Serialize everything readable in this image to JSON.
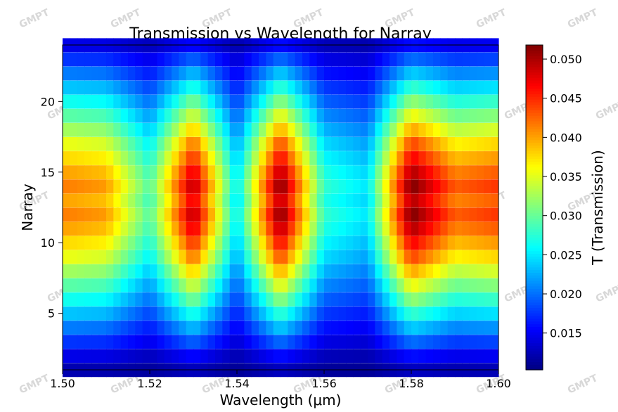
{
  "chart_data": {
    "type": "heatmap",
    "title": "Transmission vs Wavelength for Narray",
    "xlabel": "Wavelength (μm)",
    "ylabel": "Narray",
    "colorbar_label": "T (Transmission)",
    "colormap": "jet",
    "xlim": [
      1.5,
      1.6
    ],
    "ylim": [
      1,
      24
    ],
    "vlim": [
      0.0103,
      0.0518
    ],
    "x_ticks": [
      "1.50",
      "1.52",
      "1.54",
      "1.56",
      "1.58",
      "1.60"
    ],
    "y_ticks": [
      "5",
      "10",
      "15",
      "20"
    ],
    "colorbar_ticks": [
      "0.015",
      "0.020",
      "0.025",
      "0.030",
      "0.035",
      "0.040",
      "0.045",
      "0.050"
    ],
    "y_rows": [
      1,
      2,
      3,
      4,
      5,
      6,
      7,
      8,
      9,
      10,
      11,
      12,
      13,
      14,
      15,
      16,
      17,
      18,
      19,
      20,
      21,
      22,
      23,
      24
    ],
    "row_peak_values": [
      0.013,
      0.016,
      0.02,
      0.024,
      0.028,
      0.032,
      0.036,
      0.04,
      0.044,
      0.047,
      0.05,
      0.052,
      0.05,
      0.052,
      0.05,
      0.047,
      0.044,
      0.04,
      0.036,
      0.032,
      0.028,
      0.024,
      0.02,
      0.016
    ],
    "column_profile_wavelengths": [
      1.5,
      1.51,
      1.52,
      1.53,
      1.54,
      1.55,
      1.56,
      1.57,
      1.58,
      1.59,
      1.6
    ],
    "column_profile_relative": [
      0.75,
      0.72,
      0.45,
      0.95,
      0.35,
      1.0,
      0.42,
      0.35,
      1.0,
      0.78,
      0.82
    ]
  },
  "watermark": {
    "text": "GMPT"
  }
}
